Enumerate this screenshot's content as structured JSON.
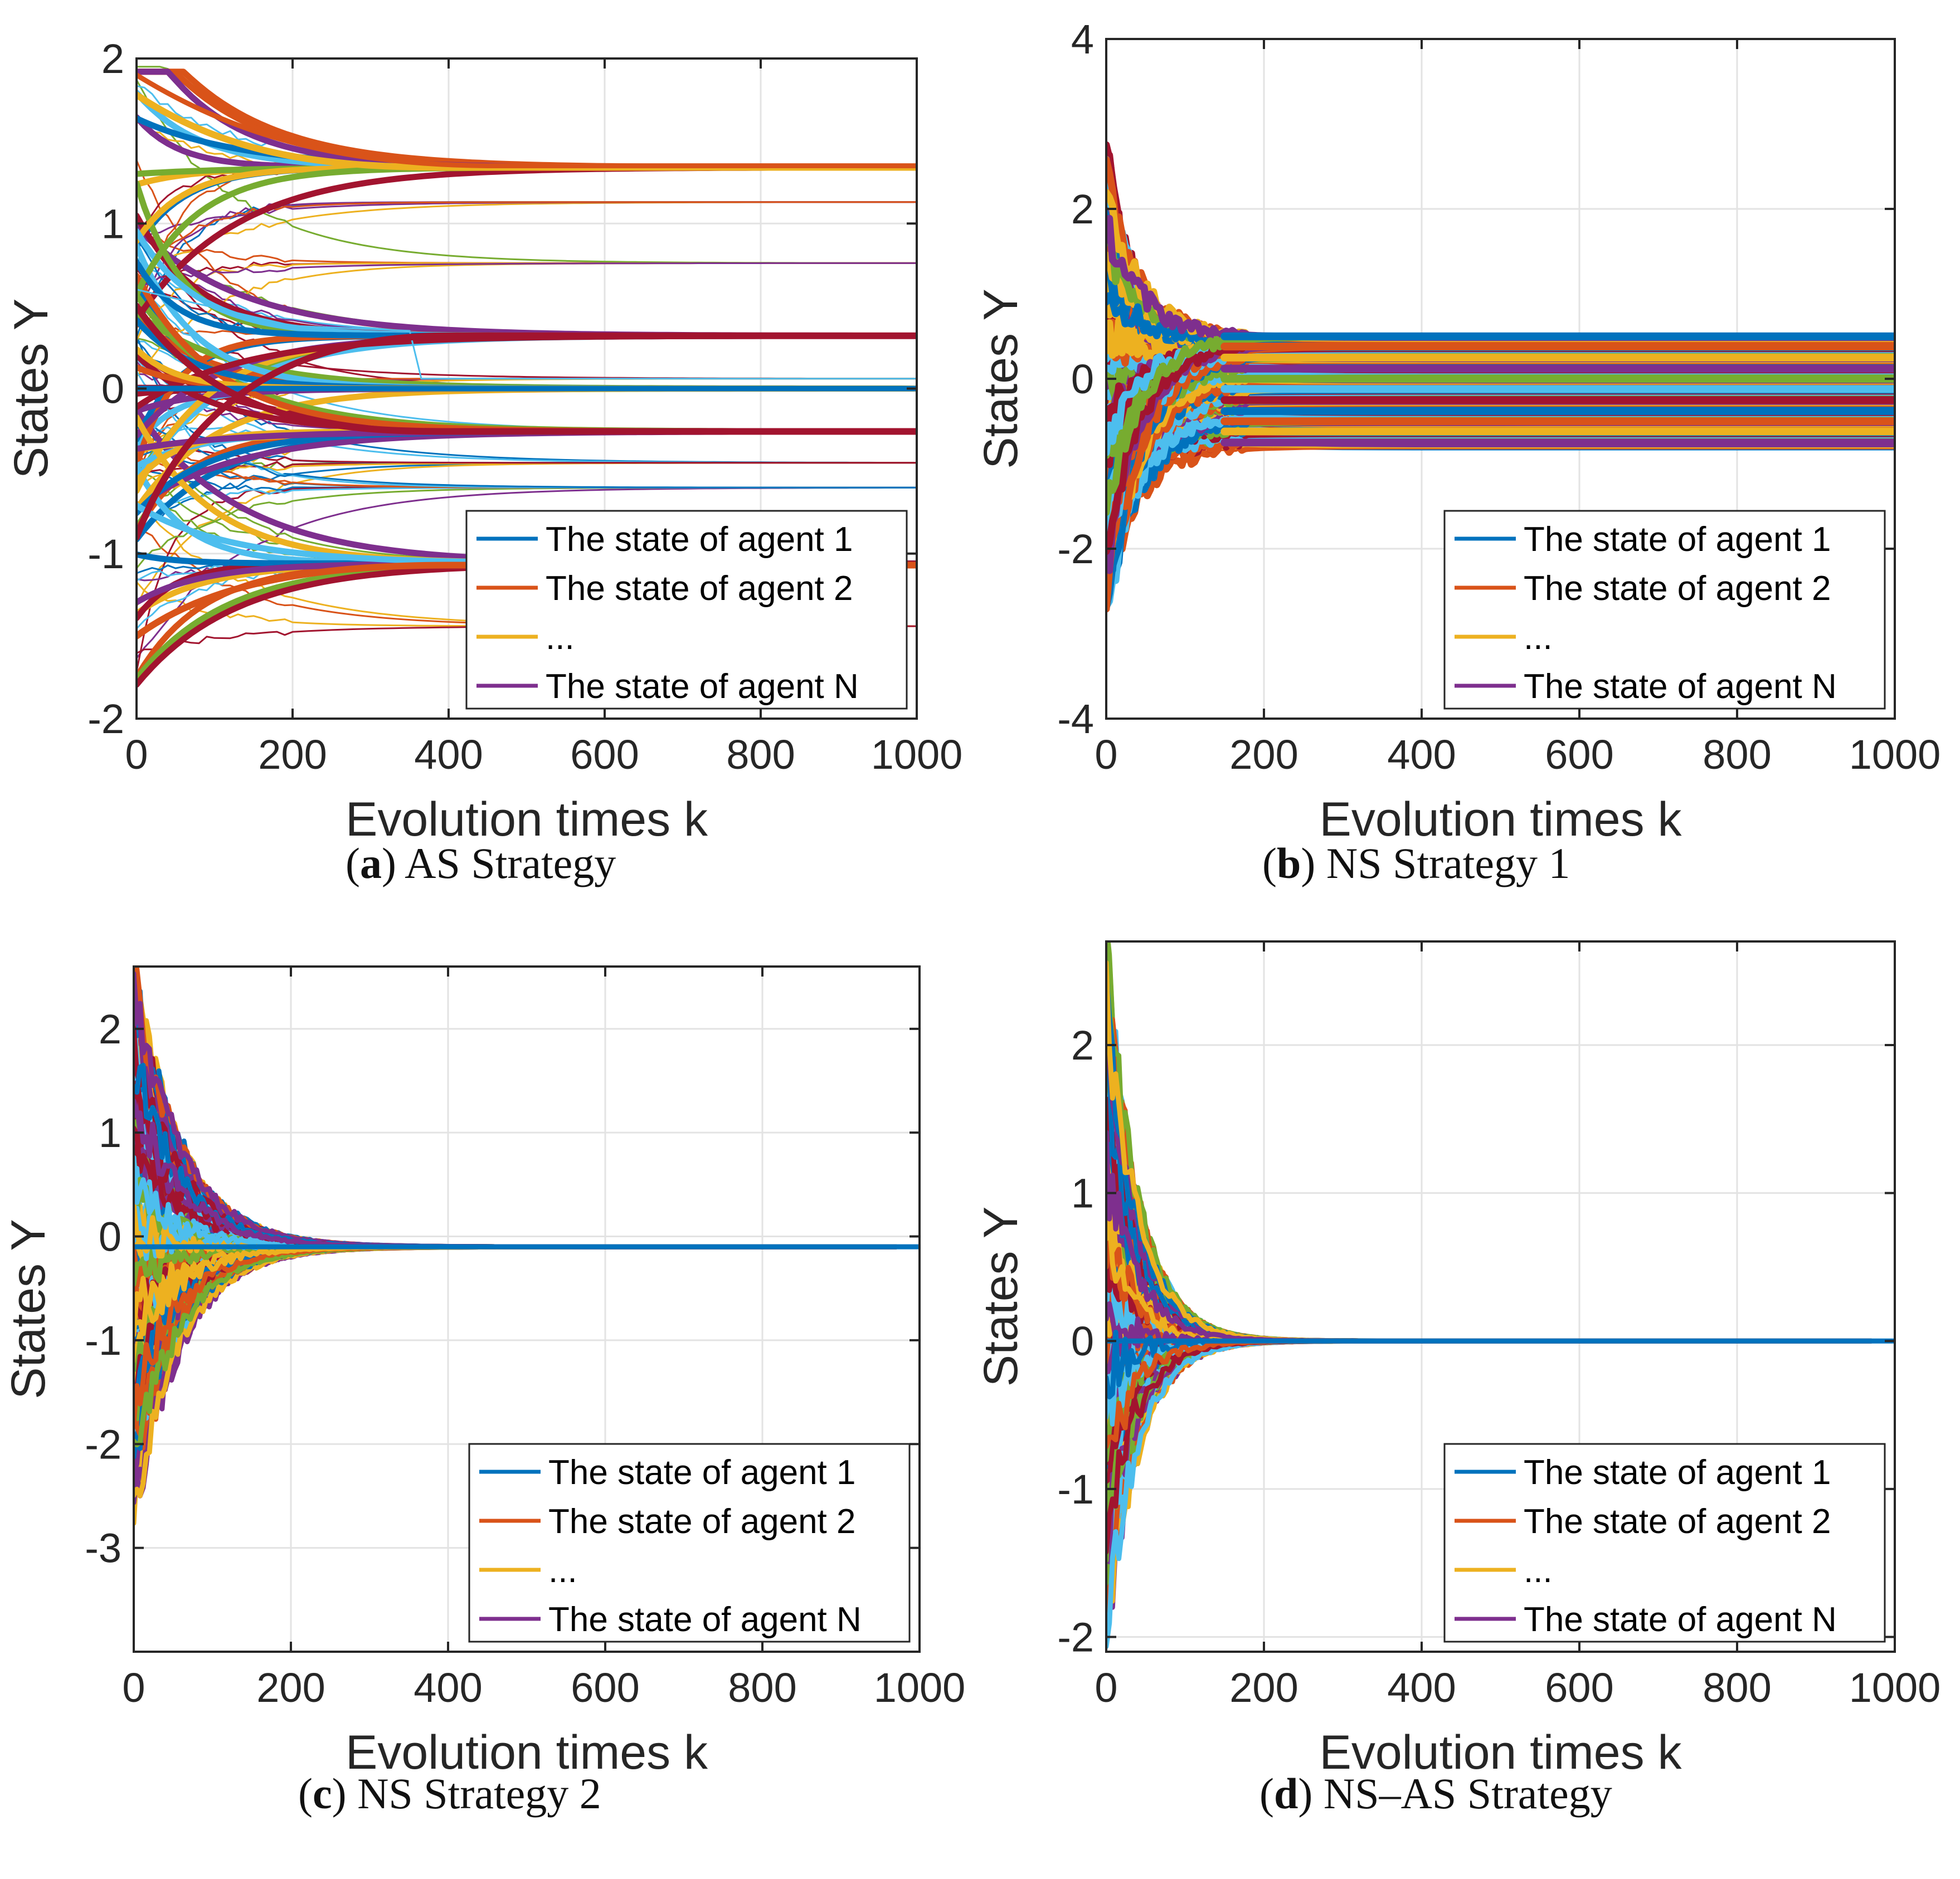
{
  "figure": {
    "colors": {
      "axis": "#262626",
      "grid": "#e3e3e3",
      "series": [
        "#0072BD",
        "#D95319",
        "#EDB120",
        "#7E2F8E",
        "#77AC30",
        "#4DBEEE",
        "#A2142F"
      ]
    }
  },
  "chart_data": [
    {
      "type": "line",
      "panel": "a",
      "caption_letter": "a",
      "caption_text": "AS Strategy",
      "xlabel": "Evolution times k",
      "ylabel": "States Y",
      "xlim": [
        0,
        1000
      ],
      "ylim": [
        -2,
        2
      ],
      "xticks": [
        0,
        200,
        400,
        600,
        800,
        1000
      ],
      "yticks": [
        -2,
        -1,
        0,
        1,
        2
      ],
      "grid": true,
      "legend": {
        "location": "bottom-right",
        "entries": [
          {
            "label": "The state of agent 1",
            "color": "#0072BD"
          },
          {
            "label": "The state of agent 2",
            "color": "#D95319"
          },
          {
            "label": "...",
            "color": "#EDB120"
          },
          {
            "label": "The state of agent N",
            "color": "#7E2F8E"
          }
        ]
      },
      "converged_states": [
        1.34,
        1.13,
        0.76,
        0.32,
        0.06,
        0.0,
        -0.26,
        -0.45,
        -0.6,
        -1.06,
        -1.44
      ],
      "convergence_k": 450,
      "series": [
        {
          "name": "The state of agent 1",
          "start": 0.0,
          "end": 0.0
        }
      ]
    },
    {
      "type": "line",
      "panel": "b",
      "caption_letter": "b",
      "caption_text": "NS Strategy 1",
      "xlabel": "Evolution times k",
      "ylabel": "States Y",
      "xlim": [
        0,
        1000
      ],
      "ylim": [
        -4,
        4
      ],
      "xticks": [
        0,
        200,
        400,
        600,
        800,
        1000
      ],
      "yticks": [
        -4,
        -2,
        0,
        2,
        4
      ],
      "grid": true,
      "legend": {
        "location": "bottom-right",
        "entries": [
          {
            "label": "The state of agent 1",
            "color": "#0072BD"
          },
          {
            "label": "The state of agent 2",
            "color": "#D95319"
          },
          {
            "label": "...",
            "color": "#EDB120"
          },
          {
            "label": "The state of agent N",
            "color": "#7E2F8E"
          }
        ]
      },
      "initial_range": [
        -2.8,
        2.7
      ],
      "final_range": [
        -0.8,
        0.5
      ],
      "convergence_k": 180
    },
    {
      "type": "line",
      "panel": "c",
      "caption_letter": "c",
      "caption_text": "NS Strategy 2",
      "xlabel": "Evolution times k",
      "ylabel": "States Y",
      "xlim": [
        0,
        1000
      ],
      "ylim": [
        -4,
        2.6
      ],
      "xticks": [
        0,
        200,
        400,
        600,
        800,
        1000
      ],
      "yticks": [
        -3,
        -2,
        -1,
        0,
        1,
        2
      ],
      "grid": true,
      "legend": {
        "location": "bottom-right",
        "entries": [
          {
            "label": "The state of agent 1",
            "color": "#0072BD"
          },
          {
            "label": "The state of agent 2",
            "color": "#D95319"
          },
          {
            "label": "...",
            "color": "#EDB120"
          },
          {
            "label": "The state of agent N",
            "color": "#7E2F8E"
          }
        ]
      },
      "initial_range": [
        -2.7,
        2.6
      ],
      "consensus_value": -0.1,
      "convergence_k": 300
    },
    {
      "type": "line",
      "panel": "d",
      "caption_letter": "d",
      "caption_text": "NS–AS Strategy",
      "xlabel": "Evolution times k",
      "ylabel": "States Y",
      "xlim": [
        0,
        1000
      ],
      "ylim": [
        -2.1,
        2.7
      ],
      "xticks": [
        0,
        200,
        400,
        600,
        800,
        1000
      ],
      "yticks": [
        -2,
        -1,
        0,
        1,
        2
      ],
      "grid": true,
      "legend": {
        "location": "bottom-right",
        "entries": [
          {
            "label": "The state of agent 1",
            "color": "#0072BD"
          },
          {
            "label": "The state of agent 2",
            "color": "#D95319"
          },
          {
            "label": "...",
            "color": "#EDB120"
          },
          {
            "label": "The state of agent N",
            "color": "#7E2F8E"
          }
        ]
      },
      "initial_range": [
        -2.0,
        2.7
      ],
      "consensus_value": 0.0,
      "convergence_k": 160
    }
  ]
}
